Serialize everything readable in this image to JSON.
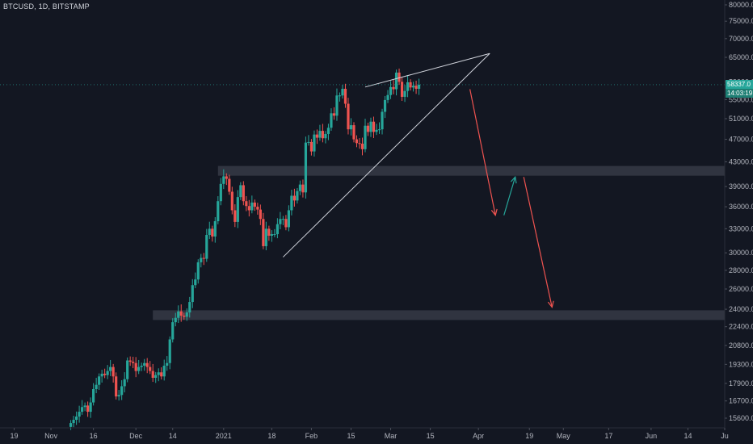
{
  "header": {
    "title": "BTCUSD, 1D, BITSTAMP"
  },
  "last_price": {
    "value": 58337.0,
    "label": "58337.0",
    "countdown": "14:03:19"
  },
  "colors": {
    "background": "#131722",
    "up": "#26a69a",
    "down": "#ef5350",
    "zone": "#363a45",
    "axis_text": "#b2b5be",
    "annotation": "#d1d4dc"
  },
  "chart_data": {
    "type": "candlestick",
    "title": "BTCUSD, 1D, BITSTAMP",
    "y_scale": "log",
    "ylim": [
      14800,
      82000
    ],
    "y_ticks": [
      80000,
      75000,
      70000,
      65000,
      59000,
      55000,
      51000,
      47000,
      43000,
      39000,
      36000,
      33000,
      30000,
      28000,
      26000,
      24000,
      22400,
      20800,
      19300,
      17900,
      16700,
      15600
    ],
    "xlim": [
      "2020-10-14",
      "2021-06-27"
    ],
    "x_ticks": [
      {
        "label": "19",
        "date": "2020-10-19"
      },
      {
        "label": "Nov",
        "date": "2020-11-01"
      },
      {
        "label": "16",
        "date": "2020-11-16"
      },
      {
        "label": "Dec",
        "date": "2020-12-01"
      },
      {
        "label": "14",
        "date": "2020-12-14"
      },
      {
        "label": "2021",
        "date": "2021-01-01"
      },
      {
        "label": "18",
        "date": "2021-01-18"
      },
      {
        "label": "Feb",
        "date": "2021-02-01"
      },
      {
        "label": "15",
        "date": "2021-02-15"
      },
      {
        "label": "Mar",
        "date": "2021-03-01"
      },
      {
        "label": "15",
        "date": "2021-03-15"
      },
      {
        "label": "Apr",
        "date": "2021-04-01"
      },
      {
        "label": "19",
        "date": "2021-04-19"
      },
      {
        "label": "May",
        "date": "2021-05-01"
      },
      {
        "label": "17",
        "date": "2021-05-17"
      },
      {
        "label": "Jun",
        "date": "2021-06-01"
      },
      {
        "label": "14",
        "date": "2021-06-14"
      },
      {
        "label": "Ju",
        "date": "2021-06-27"
      }
    ],
    "candles_start": "2020-11-08",
    "candles_close": [
      15300,
      15500,
      15700,
      16000,
      16300,
      16400,
      16000,
      16600,
      17500,
      17800,
      18400,
      18600,
      18500,
      18800,
      19100,
      18400,
      17000,
      17100,
      17700,
      18200,
      19600,
      19500,
      19400,
      18800,
      19100,
      19200,
      19400,
      19100,
      18800,
      18300,
      18500,
      18700,
      18400,
      19200,
      19400,
      21300,
      22800,
      23200,
      23800,
      23400,
      23300,
      23700,
      24700,
      26400,
      27000,
      28900,
      29400,
      29300,
      32200,
      33000,
      32000,
      34000,
      36800,
      39400,
      40600,
      40200,
      38200,
      35500,
      33900,
      37400,
      39200,
      36800,
      36100,
      35500,
      36600,
      36000,
      35600,
      34300,
      30800,
      33000,
      32100,
      32300,
      32300,
      33600,
      34300,
      34300,
      33200,
      35500,
      37600,
      36900,
      38300,
      39300,
      38100,
      46400,
      46500,
      44800,
      47900,
      47300,
      48600,
      47200,
      48000,
      49200,
      52100,
      51600,
      55900,
      55900,
      57400,
      54100,
      48900,
      49700,
      47000,
      46300,
      46200,
      45200,
      49600,
      48400,
      50400,
      48400,
      48800,
      48900,
      52400,
      54900,
      56000,
      57800,
      57300,
      61200,
      59000,
      55600,
      56900,
      58900,
      57700,
      58100,
      57400,
      58337
    ],
    "levels": [
      {
        "low": 40700,
        "high": 42300
      },
      {
        "low": 23000,
        "high": 23900
      }
    ],
    "wedge": [
      {
        "points": [
          [
            "2021-01-22",
            29500
          ],
          [
            "2021-04-05",
            66000
          ]
        ]
      },
      {
        "points": [
          [
            "2021-02-20",
            57800
          ],
          [
            "2021-04-05",
            66000
          ]
        ]
      }
    ],
    "projection": [
      {
        "direction": "down",
        "color": "#ef5350",
        "from": [
          "2021-03-29",
          57300
        ],
        "to": [
          "2021-04-07",
          34800
        ]
      },
      {
        "direction": "up",
        "color": "#26a69a",
        "from": [
          "2021-04-10",
          34800
        ],
        "to": [
          "2021-04-14",
          40500
        ]
      },
      {
        "direction": "down",
        "color": "#ef5350",
        "from": [
          "2021-04-17",
          40500
        ],
        "to": [
          "2021-04-27",
          24200
        ]
      }
    ]
  }
}
